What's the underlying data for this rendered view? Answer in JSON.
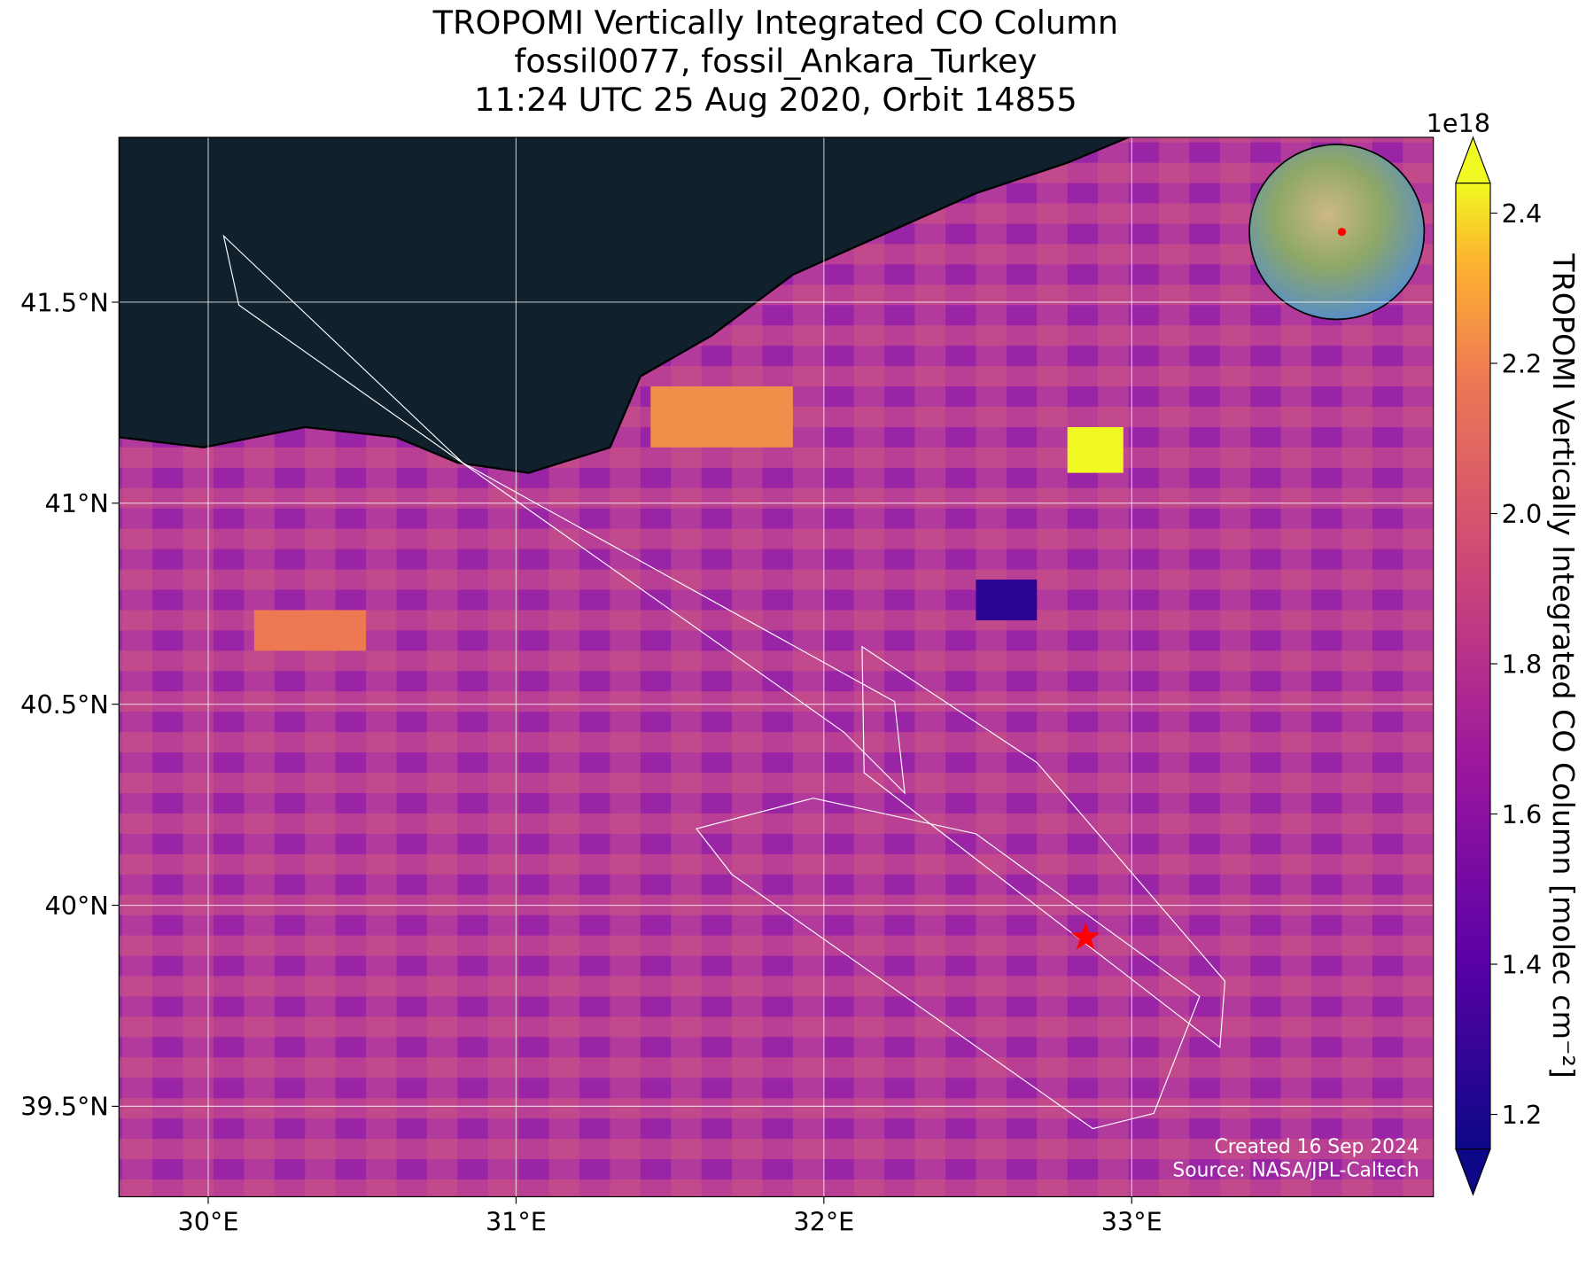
{
  "title": [
    "TROPOMI Vertically Integrated CO Column",
    "fossil0077, fossil_Ankara_Turkey",
    "11:24 UTC 25 Aug 2020, Orbit 14855"
  ],
  "map": {
    "xlim": [
      29.71,
      33.98
    ],
    "ylim": [
      39.275,
      41.91
    ],
    "xticks": [
      {
        "value": 30,
        "label": "30°E"
      },
      {
        "value": 31,
        "label": "31°E"
      },
      {
        "value": 32,
        "label": "32°E"
      },
      {
        "value": 33,
        "label": "33°E"
      }
    ],
    "yticks": [
      {
        "value": 39.5,
        "label": "39.5°N"
      },
      {
        "value": 40,
        "label": "40°N"
      },
      {
        "value": 40.5,
        "label": "40.5°N"
      },
      {
        "value": 41,
        "label": "41°N"
      },
      {
        "value": 41.5,
        "label": "41.5°N"
      }
    ],
    "grid": true,
    "site_marker": {
      "lon": 32.85,
      "lat": 39.92,
      "color": "#ff0000"
    },
    "annotations": [
      "Created 16 Sep 2024",
      "Source: NASA/JPL-Caltech"
    ]
  },
  "colorbar": {
    "label": "TROPOMI Vertically Integrated CO Column [molec cm⁻²]",
    "multiplier": "1e18",
    "lim": [
      1.154,
      2.44
    ],
    "ticks": [
      1.2,
      1.4,
      1.6,
      1.8,
      {
        "value": 2,
        "label": "2.0"
      },
      2.2,
      2.4
    ]
  }
}
